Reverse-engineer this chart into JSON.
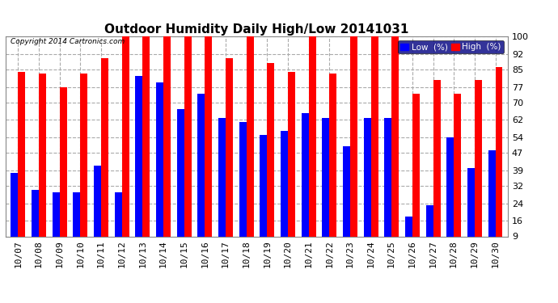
{
  "title": "Outdoor Humidity Daily High/Low 20141031",
  "copyright": "Copyright 2014 Cartronics.com",
  "dates": [
    "10/07",
    "10/08",
    "10/09",
    "10/10",
    "10/11",
    "10/12",
    "10/13",
    "10/14",
    "10/15",
    "10/16",
    "10/17",
    "10/18",
    "10/19",
    "10/20",
    "10/21",
    "10/22",
    "10/23",
    "10/24",
    "10/25",
    "10/26",
    "10/27",
    "10/28",
    "10/29",
    "10/30"
  ],
  "high": [
    84,
    83,
    77,
    83,
    90,
    100,
    100,
    100,
    100,
    100,
    90,
    100,
    88,
    84,
    100,
    83,
    100,
    100,
    100,
    74,
    80,
    74,
    80,
    86
  ],
  "low": [
    38,
    30,
    29,
    29,
    41,
    29,
    82,
    79,
    67,
    74,
    63,
    61,
    55,
    57,
    65,
    63,
    50,
    63,
    63,
    18,
    23,
    54,
    40,
    48
  ],
  "high_color": "#ff0000",
  "low_color": "#0000ff",
  "bg_color": "#ffffff",
  "grid_color": "#aaaaaa",
  "ylim_min": 9,
  "ylim_max": 100,
  "yticks": [
    9,
    16,
    24,
    32,
    39,
    47,
    54,
    62,
    70,
    77,
    85,
    92,
    100
  ],
  "bar_width": 0.35,
  "title_fontsize": 11,
  "tick_fontsize": 8,
  "legend_fontsize": 7.5
}
